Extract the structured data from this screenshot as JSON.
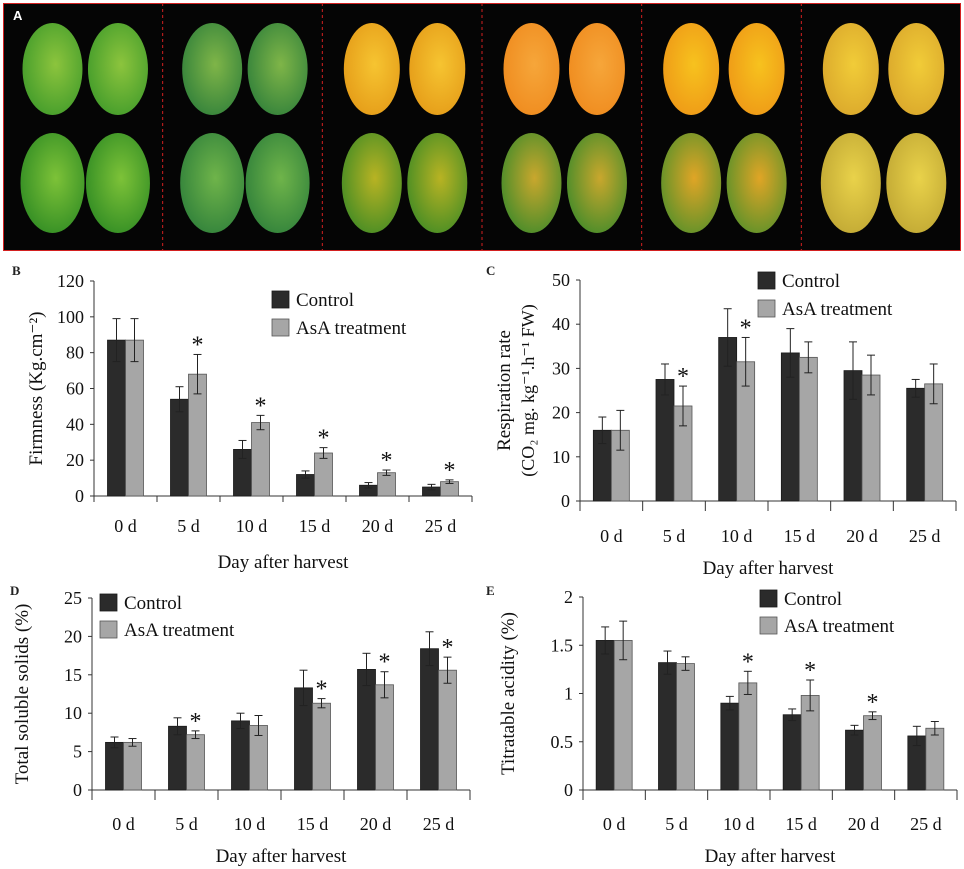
{
  "photo_panel": {
    "label": "A",
    "columns": 6
  },
  "colors": {
    "control": "#2b2b2b",
    "treatment": "#a6a6a6",
    "border": "#d32020",
    "photo_bg": "#050505"
  },
  "chart_data": [
    {
      "panel": "B",
      "type": "bar",
      "categories": [
        "0 d",
        "5 d",
        "10 d",
        "15 d",
        "20 d",
        "25 d"
      ],
      "series": [
        {
          "name": "Control",
          "values": [
            87,
            54,
            26,
            12,
            6,
            5
          ],
          "errors": [
            12,
            7,
            5,
            2,
            1.5,
            1.5
          ]
        },
        {
          "name": "AsA treatment",
          "values": [
            87,
            68,
            41,
            24,
            13,
            8
          ],
          "errors": [
            12,
            11,
            4,
            3,
            1.5,
            1
          ]
        }
      ],
      "significant": [
        false,
        true,
        true,
        true,
        true,
        true
      ],
      "xlabel": "Day after harvest",
      "ylabel": "Firmness (Kg.cm⁻²)",
      "ylim": [
        0,
        120
      ],
      "yticks": [
        "0",
        "20",
        "40",
        "60",
        "80",
        "100",
        "120"
      ],
      "legend": [
        "Control",
        "AsA treatment"
      ],
      "legend_position": "top-right"
    },
    {
      "panel": "C",
      "type": "bar",
      "categories": [
        "0 d",
        "5 d",
        "10 d",
        "15 d",
        "20 d",
        "25 d"
      ],
      "series": [
        {
          "name": "Control",
          "values": [
            16,
            27.5,
            37,
            33.5,
            29.5,
            25.5
          ],
          "errors": [
            3,
            3.5,
            6.5,
            5.5,
            6.5,
            2
          ]
        },
        {
          "name": "AsA treatment",
          "values": [
            16,
            21.5,
            31.5,
            32.5,
            28.5,
            26.5
          ],
          "errors": [
            4.5,
            4.5,
            5.5,
            3.5,
            4.5,
            4.5
          ]
        }
      ],
      "significant": [
        false,
        true,
        true,
        false,
        false,
        false
      ],
      "xlabel": "Day after harvest",
      "ylabel_line1": "Respiration rate",
      "ylabel_line2": "(CO₂ mg. kg⁻¹.h⁻¹ FW)",
      "ylim": [
        0,
        50
      ],
      "yticks": [
        "0",
        "10",
        "20",
        "30",
        "40",
        "50"
      ],
      "legend": [
        "Control",
        "AsA treatment"
      ],
      "legend_position": "top-right"
    },
    {
      "panel": "D",
      "type": "bar",
      "categories": [
        "0 d",
        "5 d",
        "10 d",
        "15 d",
        "20 d",
        "25 d"
      ],
      "series": [
        {
          "name": "Control",
          "values": [
            6.2,
            8.3,
            9.0,
            13.3,
            15.7,
            18.4
          ],
          "errors": [
            0.7,
            1.1,
            1.0,
            2.3,
            2.1,
            2.2
          ]
        },
        {
          "name": "AsA treatment",
          "values": [
            6.2,
            7.2,
            8.4,
            11.3,
            13.7,
            15.6
          ],
          "errors": [
            0.5,
            0.5,
            1.3,
            0.6,
            1.7,
            1.7
          ]
        }
      ],
      "significant": [
        false,
        true,
        false,
        true,
        true,
        true
      ],
      "xlabel": "Day after harvest",
      "ylabel": "Total soluble solids (%)",
      "ylim": [
        0,
        25
      ],
      "yticks": [
        "0",
        "5",
        "10",
        "15",
        "20",
        "25"
      ],
      "legend": [
        "Control",
        "AsA treatment"
      ],
      "legend_position": "top-left"
    },
    {
      "panel": "E",
      "type": "bar",
      "categories": [
        "0 d",
        "5 d",
        "10 d",
        "15 d",
        "20 d",
        "25 d"
      ],
      "series": [
        {
          "name": "Control",
          "values": [
            1.55,
            1.32,
            0.9,
            0.78,
            0.62,
            0.56
          ],
          "errors": [
            0.14,
            0.12,
            0.07,
            0.06,
            0.05,
            0.1
          ]
        },
        {
          "name": "AsA treatment",
          "values": [
            1.55,
            1.31,
            1.11,
            0.98,
            0.77,
            0.64
          ],
          "errors": [
            0.2,
            0.07,
            0.12,
            0.16,
            0.04,
            0.07
          ]
        }
      ],
      "significant": [
        false,
        false,
        true,
        true,
        true,
        false
      ],
      "xlabel": "Day after harvest",
      "ylabel": "Titratable acidity (%)",
      "ylim": [
        0,
        2
      ],
      "yticks": [
        "0",
        "0.5",
        "1",
        "1.5",
        "2"
      ],
      "legend": [
        "Control",
        "AsA treatment"
      ],
      "legend_position": "top-right"
    }
  ]
}
